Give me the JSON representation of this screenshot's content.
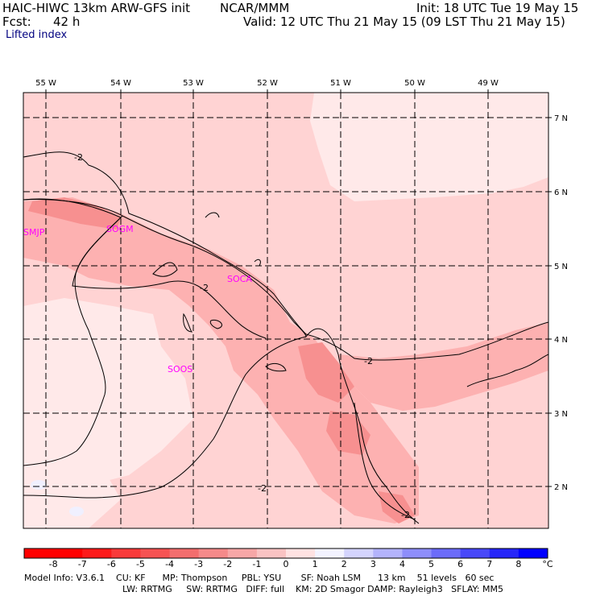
{
  "header": {
    "model": "HAIC-HIWC 13km ARW-GFS init",
    "org": "NCAR/MMM",
    "fcst_label": "Fcst:",
    "fcst_value": "42 h",
    "init": "Init: 18 UTC Tue 19 May 15",
    "valid": "Valid: 12 UTC Thu 21 May 15 (09 LST Thu 21 May 15)",
    "field": "Lifted index"
  },
  "map": {
    "lon_labels": [
      "55 W",
      "54 W",
      "53 W",
      "52 W",
      "51 W",
      "50 W",
      "49 W"
    ],
    "lat_labels": [
      "7 N",
      "6 N",
      "5 N",
      "4 N",
      "3 N",
      "2 N"
    ],
    "stations": [
      "SMJP",
      "SOGM",
      "SOCA",
      "SOOS"
    ],
    "contour_label": "-2",
    "colors": {
      "fill_light": "#ffd3d3",
      "fill_pale": "#ffe9e9",
      "fill_mid": "#fdb1b1",
      "fill_dark": "#f79090",
      "station_text": "#ff00ff"
    }
  },
  "colorbar": {
    "labels": [
      "-8",
      "-7",
      "-6",
      "-5",
      "-4",
      "-3",
      "-2",
      "-1",
      "0",
      "1",
      "2",
      "3",
      "4",
      "5",
      "6",
      "7",
      "8"
    ],
    "unit": "°C",
    "colors": [
      "#ff0000",
      "#fd1a1a",
      "#f93a3a",
      "#f65353",
      "#f36e6e",
      "#f58a8a",
      "#f7a7a7",
      "#fac3c3",
      "#ffe2e2",
      "#f3f3ff",
      "#d4d4fe",
      "#b3b3fc",
      "#8e8efb",
      "#6c6cfa",
      "#4848f9",
      "#2626f9",
      "#0000ff"
    ]
  },
  "footer": {
    "line1": "Model Info: V3.6.1    CU: KF      MP: Thompson     PBL: YSU       SF: Noah LSM      13 km    51 levels   60 sec",
    "line2": "LW: RRTMG     SW: RRTMG   DIFF: full    KM: 2D Smagor DAMP: Rayleigh3   SFLAY: MM5"
  }
}
